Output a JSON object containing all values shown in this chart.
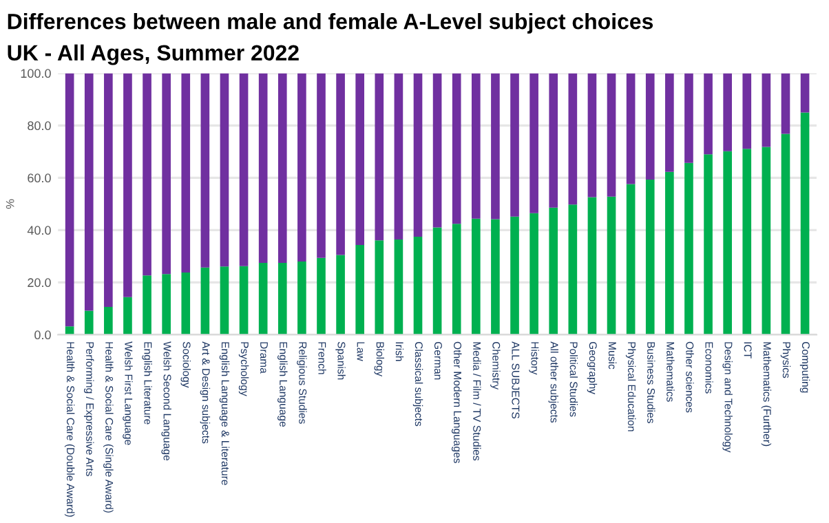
{
  "chart_data": {
    "type": "bar",
    "stacked": true,
    "title": "Differences between male and female A-Level subject choices",
    "subtitle": "UK - All Ages, Summer 2022",
    "ylabel": "%",
    "categories": [
      "Health & Social Care (Double Award)",
      "Performing / Expressive Arts",
      "Health & Social Care (Single Award)",
      "Welsh First Language",
      "English Literature",
      "Welsh Second Language",
      "Sociology",
      "Art & Design subjects",
      "English Language & Literature",
      "Psychology",
      "Drama",
      "English Language",
      "Religious Studies",
      "French",
      "Spanish",
      "Law",
      "Biology",
      "Irish",
      "Classical subjects",
      "German",
      "Other Modern Languages",
      "Media / Film / TV Studies",
      "Chemistry",
      "ALL SUBJECTS",
      "History",
      "All other subjects",
      "Political Studies",
      "Geography",
      "Music",
      "Physical Education",
      "Business Studies",
      "Mathematics",
      "Other sciences",
      "Economics",
      "Design and Technology",
      "ICT",
      "Mathematics (Further)",
      "Physics",
      "Computing"
    ],
    "series": [
      {
        "color": "#00b050",
        "values": [
          3.2,
          9.2,
          10.6,
          14.4,
          22.7,
          23.2,
          23.8,
          25.7,
          26.1,
          26.2,
          27.5,
          27.5,
          28.0,
          29.4,
          30.5,
          34.3,
          36.1,
          36.4,
          37.5,
          41.0,
          42.4,
          44.4,
          44.2,
          45.2,
          46.5,
          48.6,
          49.8,
          52.6,
          52.8,
          57.6,
          59.3,
          62.3,
          65.7,
          69.0,
          70.2,
          71.1,
          71.8,
          76.8,
          85.0
        ]
      },
      {
        "color": "#7030a0",
        "values": [
          96.8,
          90.8,
          89.4,
          85.6,
          77.3,
          76.8,
          76.2,
          74.3,
          73.9,
          73.8,
          72.5,
          72.5,
          72.0,
          70.6,
          69.5,
          65.7,
          63.9,
          63.6,
          62.5,
          59.0,
          57.6,
          55.6,
          55.8,
          54.8,
          53.5,
          51.4,
          50.2,
          47.4,
          47.2,
          42.4,
          40.7,
          37.7,
          34.3,
          31.0,
          29.8,
          28.9,
          28.2,
          23.2,
          15.0
        ]
      }
    ],
    "ylim": [
      0,
      100
    ],
    "yticks": [
      {
        "value": 0,
        "label": "0.0"
      },
      {
        "value": 20,
        "label": "20.0"
      },
      {
        "value": 40,
        "label": "40.0"
      },
      {
        "value": 60,
        "label": "60.0"
      },
      {
        "value": 80,
        "label": "80.0"
      },
      {
        "value": 100,
        "label": "100.0"
      }
    ],
    "grid": "y"
  }
}
